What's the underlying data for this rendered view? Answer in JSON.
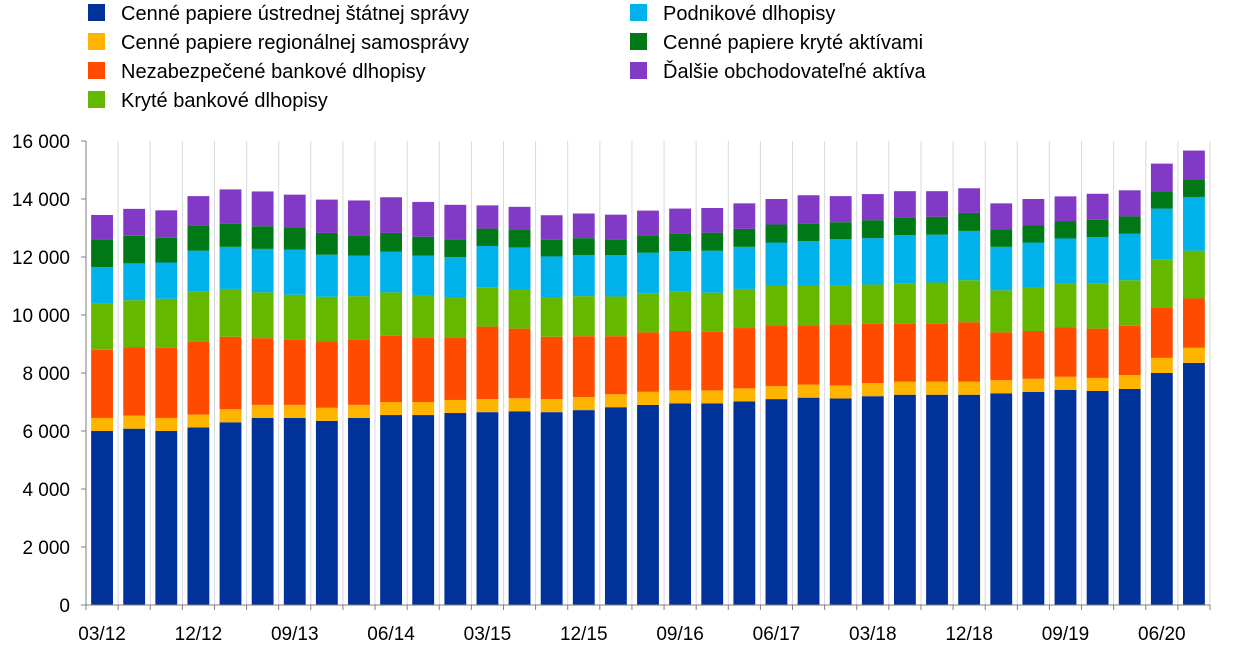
{
  "chart_data": {
    "type": "bar",
    "stacked": true,
    "title": "",
    "xlabel": "",
    "ylabel": "",
    "ylim": [
      0,
      16000
    ],
    "yticks": [
      0,
      2000,
      4000,
      6000,
      8000,
      10000,
      12000,
      14000,
      16000
    ],
    "ytick_labels": [
      "0",
      "2 000",
      "4 000",
      "6 000",
      "8 000",
      "10 000",
      "12 000",
      "14 000",
      "16 000"
    ],
    "grid": "vertical",
    "legend_placement": "top",
    "x_labels": [
      {
        "index": 0,
        "label": "03/12"
      },
      {
        "index": 3,
        "label": "12/12"
      },
      {
        "index": 6,
        "label": "09/13"
      },
      {
        "index": 9,
        "label": "06/14"
      },
      {
        "index": 12,
        "label": "03/15"
      },
      {
        "index": 15,
        "label": "12/15"
      },
      {
        "index": 18,
        "label": "09/16"
      },
      {
        "index": 21,
        "label": "06/17"
      },
      {
        "index": 24,
        "label": "03/18"
      },
      {
        "index": 27,
        "label": "12/18"
      },
      {
        "index": 30,
        "label": "09/19"
      },
      {
        "index": 33,
        "label": "06/20"
      }
    ],
    "series": [
      {
        "name": "Cenné papiere ústrednej štátnej správy",
        "color": "#003299",
        "values": [
          6000,
          6080,
          6000,
          6120,
          6300,
          6450,
          6450,
          6350,
          6450,
          6550,
          6550,
          6620,
          6650,
          6680,
          6650,
          6720,
          6820,
          6900,
          6950,
          6950,
          7020,
          7100,
          7150,
          7120,
          7200,
          7250,
          7250,
          7250,
          7300,
          7350,
          7420,
          7380,
          7450,
          8000,
          8350
        ]
      },
      {
        "name": "Cenné papiere regionálnej samosprávy",
        "color": "#FFB400",
        "values": [
          450,
          450,
          450,
          450,
          450,
          450,
          450,
          450,
          450,
          450,
          450,
          450,
          450,
          450,
          450,
          450,
          450,
          450,
          450,
          450,
          450,
          450,
          450,
          450,
          450,
          450,
          450,
          450,
          450,
          450,
          450,
          450,
          480,
          520,
          520
        ]
      },
      {
        "name": "Nezabezpečené bankové dlhopisy",
        "color": "#FF4B00",
        "values": [
          2350,
          2350,
          2420,
          2500,
          2500,
          2300,
          2250,
          2300,
          2250,
          2280,
          2220,
          2150,
          2500,
          2400,
          2150,
          2100,
          2000,
          2050,
          2050,
          2020,
          2080,
          2100,
          2050,
          2100,
          2050,
          2000,
          2000,
          2050,
          1650,
          1650,
          1700,
          1700,
          1700,
          1750,
          1700
        ]
      },
      {
        "name": "Kryté bankové dlhopisy",
        "color": "#65B800",
        "values": [
          1600,
          1630,
          1690,
          1730,
          1650,
          1580,
          1550,
          1530,
          1500,
          1500,
          1450,
          1400,
          1360,
          1350,
          1370,
          1380,
          1370,
          1350,
          1350,
          1350,
          1350,
          1350,
          1350,
          1350,
          1350,
          1400,
          1420,
          1450,
          1450,
          1500,
          1520,
          1550,
          1570,
          1650,
          1650
        ]
      },
      {
        "name": "Podnikové dlhopisy",
        "color": "#00B1EA",
        "values": [
          1250,
          1270,
          1250,
          1420,
          1450,
          1500,
          1550,
          1450,
          1400,
          1400,
          1380,
          1380,
          1420,
          1450,
          1400,
          1420,
          1420,
          1400,
          1400,
          1450,
          1450,
          1500,
          1550,
          1600,
          1600,
          1650,
          1650,
          1700,
          1500,
          1550,
          1550,
          1600,
          1600,
          1750,
          1850
        ]
      },
      {
        "name": "Cenné papiere kryté aktívami",
        "color": "#007816",
        "values": [
          950,
          950,
          850,
          850,
          800,
          780,
          750,
          750,
          700,
          650,
          650,
          600,
          600,
          600,
          570,
          580,
          550,
          600,
          620,
          620,
          620,
          620,
          600,
          580,
          620,
          620,
          620,
          620,
          600,
          600,
          600,
          600,
          600,
          600,
          600
        ]
      },
      {
        "name": "Ďalšie obchodovateľné aktíva",
        "color": "#8139C6",
        "values": [
          850,
          930,
          950,
          1030,
          1180,
          1200,
          1150,
          1150,
          1200,
          1230,
          1200,
          1200,
          800,
          800,
          850,
          850,
          850,
          850,
          850,
          850,
          880,
          880,
          980,
          900,
          900,
          900,
          880,
          850,
          900,
          900,
          850,
          900,
          900,
          950,
          1000
        ]
      }
    ]
  }
}
